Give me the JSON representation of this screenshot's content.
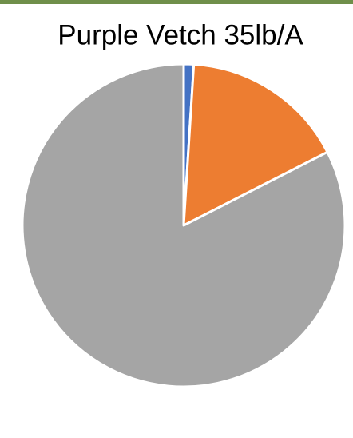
{
  "chart_data": {
    "type": "pie",
    "title": "Purple Vetch 35lb/A",
    "categories": [
      null,
      null,
      null
    ],
    "values": [
      1,
      16.5,
      82.5
    ],
    "colors": [
      "#4472c4",
      "#ed7d31",
      "#a5a5a5"
    ]
  }
}
